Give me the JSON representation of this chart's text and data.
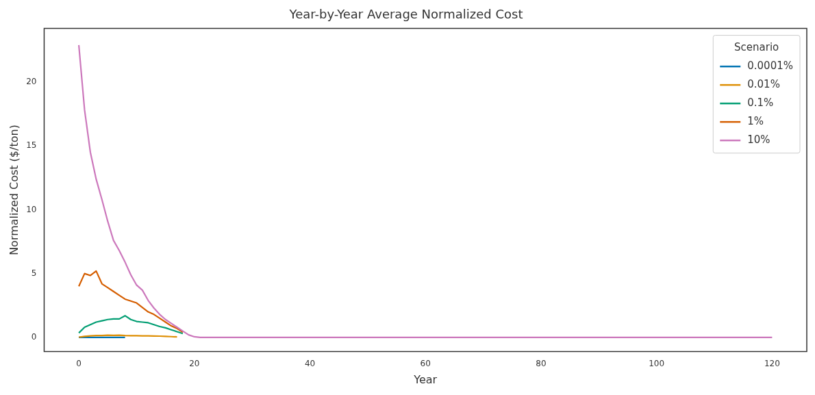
{
  "chart_data": {
    "type": "line",
    "title": "Year-by-Year Average Normalized Cost",
    "xlabel": "Year",
    "ylabel": "Normalized Cost ($/ton)",
    "legend_title": "Scenario",
    "legend": "top right",
    "grid": false,
    "line_style": "solid",
    "xlim": [
      -6,
      126
    ],
    "xticks": [
      0,
      20,
      40,
      60,
      80,
      100,
      120
    ],
    "ylim": [
      -1.1,
      24.2
    ],
    "yticks": [
      0,
      5,
      10,
      15,
      20
    ],
    "series": [
      {
        "name": "0.0001%",
        "color": "#0173b2",
        "x": [
          0,
          1,
          2,
          3,
          4,
          5,
          6,
          7,
          8
        ],
        "values": [
          0,
          0,
          0,
          0,
          0,
          0,
          0,
          0,
          0
        ]
      },
      {
        "name": "0.01%",
        "color": "#de8f05",
        "x": [
          0,
          1,
          2,
          3,
          4,
          5,
          6,
          7,
          8,
          9,
          10,
          11,
          12,
          13,
          14,
          15,
          16,
          17
        ],
        "values": [
          0.02,
          0.08,
          0.12,
          0.15,
          0.15,
          0.18,
          0.16,
          0.17,
          0.15,
          0.14,
          0.13,
          0.12,
          0.12,
          0.11,
          0.1,
          0.08,
          0.06,
          0.04
        ]
      },
      {
        "name": "0.1%",
        "color": "#029e73",
        "x": [
          0,
          1,
          2,
          3,
          4,
          5,
          6,
          7,
          8,
          9,
          10,
          11,
          12,
          13,
          14,
          15,
          16,
          17,
          18
        ],
        "values": [
          0.35,
          0.8,
          1.0,
          1.2,
          1.3,
          1.4,
          1.45,
          1.45,
          1.7,
          1.4,
          1.25,
          1.2,
          1.15,
          1.0,
          0.85,
          0.75,
          0.6,
          0.45,
          0.3
        ]
      },
      {
        "name": "1%",
        "color": "#d55e00",
        "x": [
          0,
          1,
          2,
          3,
          4,
          5,
          6,
          7,
          8,
          9,
          10,
          11,
          12,
          13,
          14,
          15,
          16,
          17,
          18
        ],
        "values": [
          4.0,
          5.0,
          4.85,
          5.2,
          4.2,
          3.9,
          3.6,
          3.3,
          3.0,
          2.85,
          2.7,
          2.35,
          2.0,
          1.8,
          1.5,
          1.2,
          0.9,
          0.7,
          0.4
        ]
      },
      {
        "name": "10%",
        "color": "#cc78bc",
        "x": [
          0,
          1,
          2,
          3,
          4,
          5,
          6,
          7,
          8,
          9,
          10,
          11,
          12,
          13,
          14,
          15,
          16,
          17,
          18,
          19,
          20,
          21,
          120
        ],
        "values": [
          22.9,
          17.8,
          14.5,
          12.4,
          10.8,
          9.1,
          7.6,
          6.8,
          5.9,
          4.9,
          4.1,
          3.7,
          2.9,
          2.3,
          1.8,
          1.4,
          1.1,
          0.8,
          0.5,
          0.2,
          0.05,
          0,
          0
        ]
      }
    ]
  }
}
